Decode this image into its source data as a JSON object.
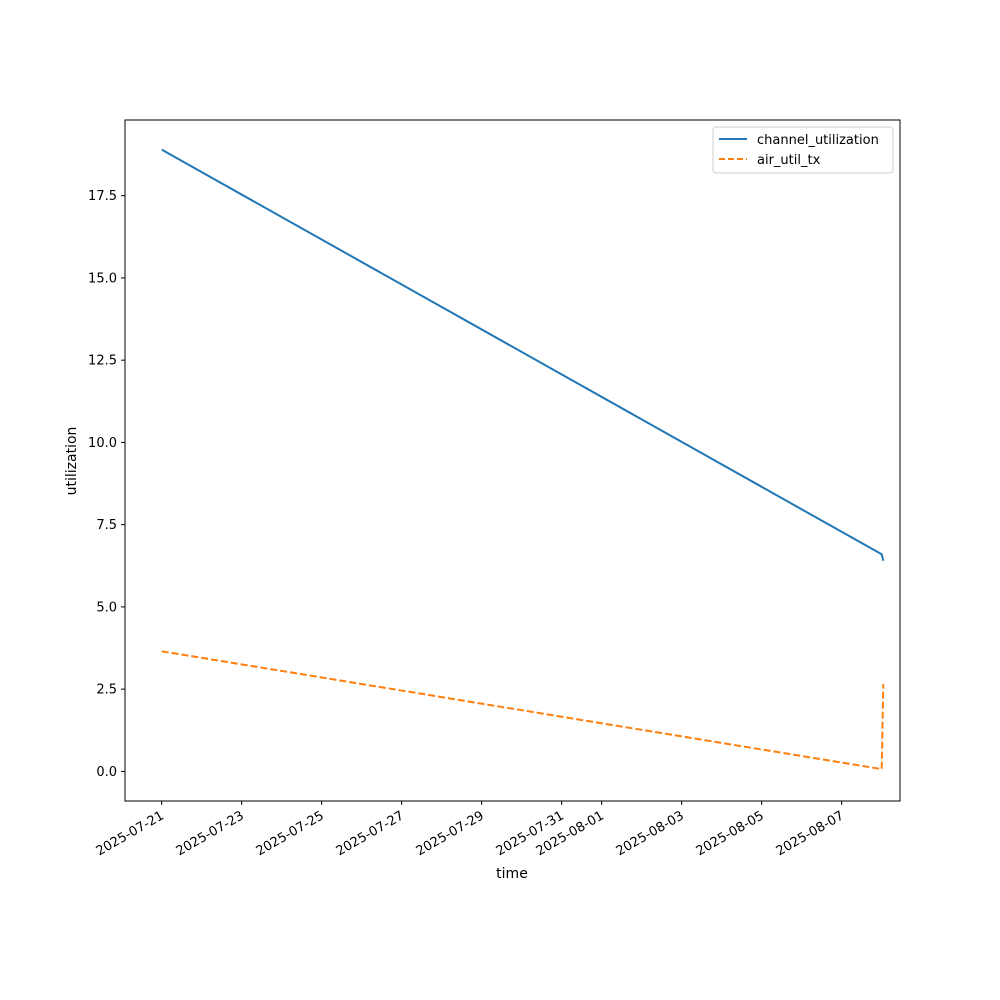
{
  "chart_data": {
    "type": "line",
    "title": "",
    "xlabel": "time",
    "ylabel": "utilization",
    "x_ticks": [
      "2025-07-21",
      "2025-07-23",
      "2025-07-25",
      "2025-07-27",
      "2025-07-29",
      "2025-07-31",
      "2025-08-01",
      "2025-08-03",
      "2025-08-05",
      "2025-08-07"
    ],
    "y_ticks": [
      0.0,
      2.5,
      5.0,
      7.5,
      10.0,
      12.5,
      15.0,
      17.5
    ],
    "y_tick_labels": [
      "0.0",
      "2.5",
      "5.0",
      "7.5",
      "10.0",
      "12.5",
      "15.0",
      "17.5"
    ],
    "xlim": [
      "2025-07-20T02:00",
      "2025-08-08T11:00"
    ],
    "ylim": [
      -0.9,
      19.8
    ],
    "x": [
      "2025-07-21T00:00",
      "2025-08-08T00:00",
      "2025-08-08T01:00"
    ],
    "series": [
      {
        "name": "channel_utilization",
        "values": [
          18.9,
          6.6,
          6.4
        ],
        "color": "#1f77b4",
        "style": "solid"
      },
      {
        "name": "air_util_tx",
        "values": [
          3.65,
          0.07,
          2.65
        ],
        "color": "#ff7f0e",
        "style": "dashed"
      }
    ],
    "grid": false,
    "legend_position": "top-right"
  }
}
